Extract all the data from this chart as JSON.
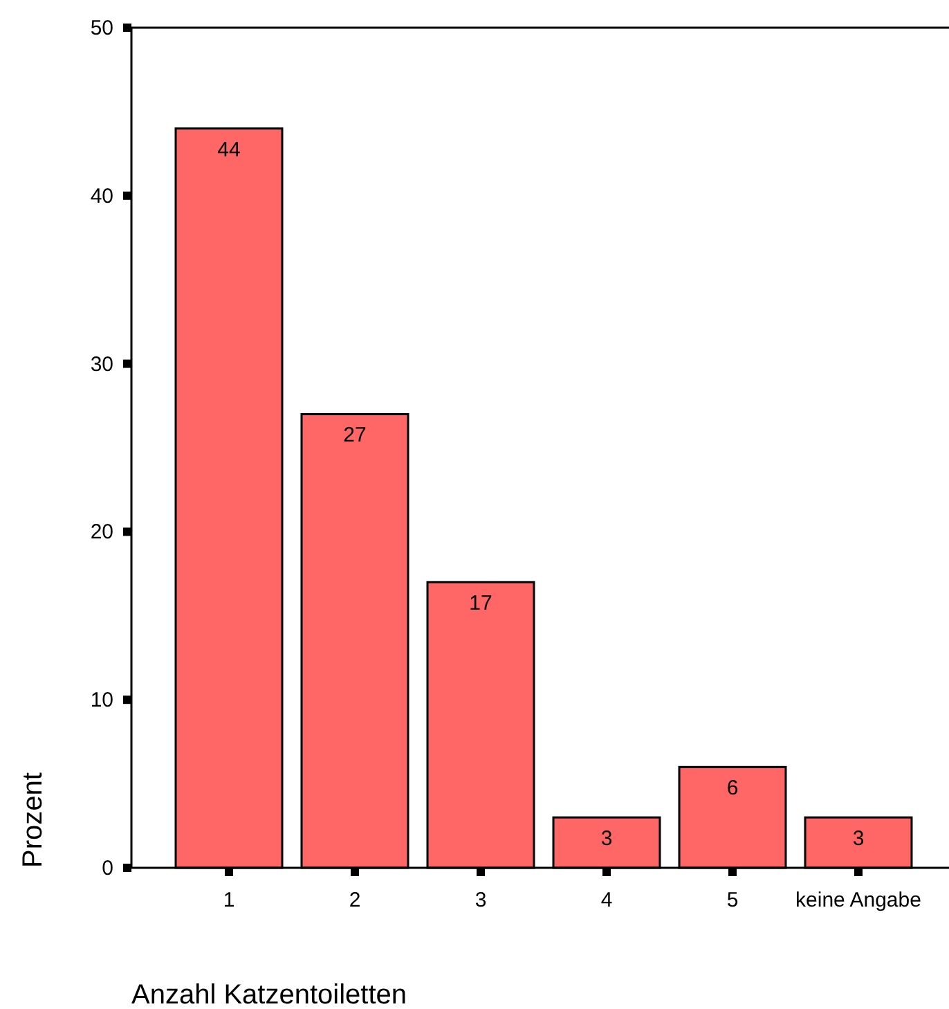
{
  "chart_data": {
    "type": "bar",
    "xlabel": "Anzahl Katzentoiletten",
    "ylabel": "Prozent",
    "categories": [
      "1",
      "2",
      "3",
      "4",
      "5",
      "keine Angabe"
    ],
    "values": [
      44,
      27,
      17,
      3,
      6,
      3
    ],
    "color": "#ff6666",
    "ylim": [
      0,
      50
    ],
    "yticks": [
      0,
      10,
      20,
      30,
      40,
      50
    ],
    "data_labels": true,
    "grid": false
  }
}
